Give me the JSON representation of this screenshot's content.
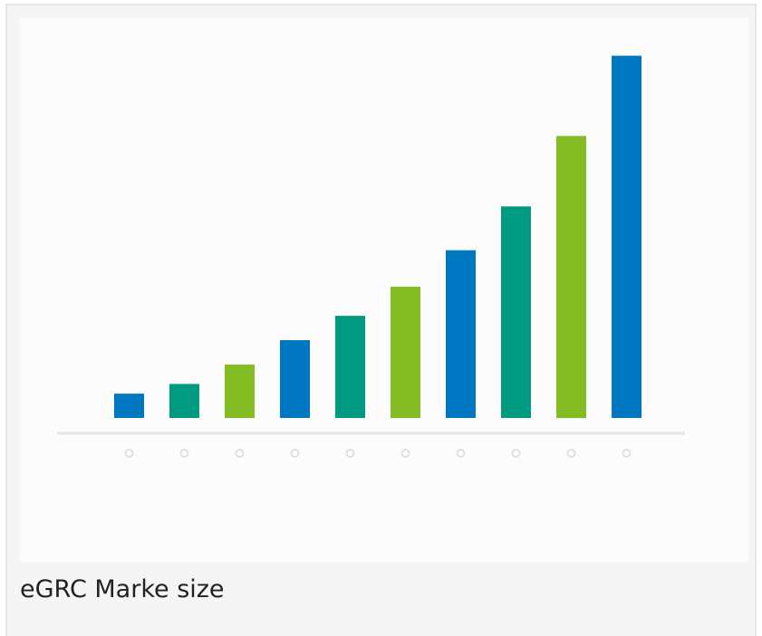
{
  "caption": "eGRC Marke size",
  "chart_data": {
    "type": "bar",
    "categories": [
      "",
      "",
      "",
      "",
      "",
      "",
      "",
      "",
      "",
      ""
    ],
    "values": [
      1.0,
      1.4,
      2.2,
      3.2,
      4.2,
      5.4,
      6.9,
      8.7,
      11.6,
      14.9
    ],
    "colors": [
      "#0078c1",
      "#009a80",
      "#84bc23",
      "#0078c1",
      "#009a80",
      "#84bc23",
      "#0078c1",
      "#009a80",
      "#84bc23",
      "#0078c1"
    ],
    "axis_color": "#e6e6e6",
    "tick_marker_color": "#e0e0e0",
    "ylim": [
      0,
      16
    ],
    "title": "",
    "xlabel": "",
    "ylabel": "",
    "grid": false,
    "legend": "none"
  }
}
